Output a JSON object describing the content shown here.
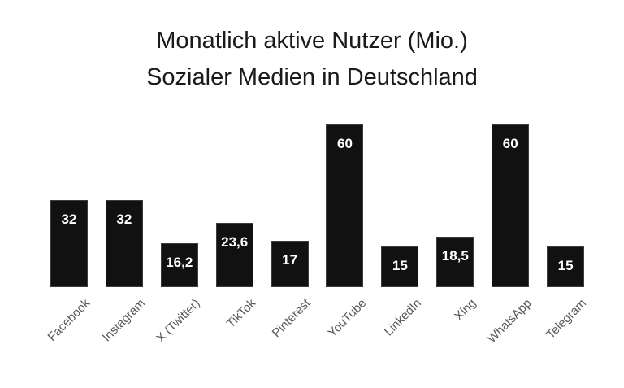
{
  "title": {
    "line1": "Monatlich aktive Nutzer (Mio.)",
    "line2": "Sozialer Medien in Deutschland"
  },
  "chart_data": {
    "type": "bar",
    "title": "Monatlich aktive Nutzer (Mio.) Sozialer Medien in Deutschland",
    "categories": [
      "Facebook",
      "Instagram",
      "X (Twitter)",
      "TikTok",
      "Pinterest",
      "YouTube",
      "LinkedIn",
      "Xing",
      "WhatsApp",
      "Telegram"
    ],
    "values": [
      32,
      32,
      16.2,
      23.6,
      17,
      60,
      15,
      18.5,
      60,
      15
    ],
    "value_labels": [
      "32",
      "32",
      "16,2",
      "23,6",
      "17",
      "60",
      "15",
      "18,5",
      "60",
      "15"
    ],
    "xlabel": "",
    "ylabel": "",
    "ylim": [
      0,
      60
    ],
    "grid": false,
    "legend": false,
    "axis_lines": false,
    "value_label_position": "inside-top",
    "category_label_rotation_deg": 45,
    "colors": {
      "bar_fill": "#111111",
      "value_label": "#ffffff",
      "category_label": "#595959",
      "title": "#1a1a1a",
      "background": "#ffffff"
    }
  }
}
